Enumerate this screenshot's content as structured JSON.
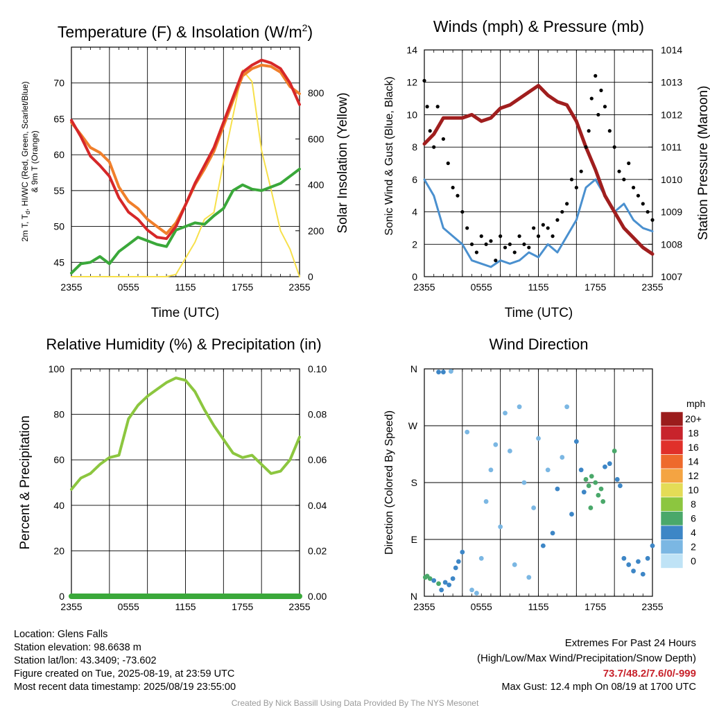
{
  "chart_data": [
    {
      "type": "line",
      "title": "Temperature (F) & Insolation (W/m²)",
      "title_main": "Temperature (F) & Insolation (W/m",
      "title_sup": "2",
      "title_end": ")",
      "xlabel": "Time (UTC)",
      "ylabel_left_1": "2m T, T",
      "ylabel_left_sub": "d",
      "ylabel_left_2": ", HI/WC (Red, Green, Scarlet/Blue)",
      "ylabel_left_3": "& 9m T (Orange)",
      "ylabel_right": "Solar Insolation (Yellow)",
      "xticks": [
        "2355",
        "0555",
        "1155",
        "1755",
        "2355"
      ],
      "ylim_left": [
        43,
        75
      ],
      "yticks_left": [
        45,
        50,
        55,
        60,
        65,
        70
      ],
      "ylim_right": [
        0,
        1000
      ],
      "yticks_right": [
        0,
        200,
        400,
        600,
        800
      ],
      "x": [
        0,
        1,
        2,
        3,
        4,
        5,
        6,
        7,
        8,
        9,
        10,
        11,
        12,
        13,
        14,
        15,
        16,
        17,
        18,
        19,
        20,
        21,
        22,
        23,
        24
      ],
      "series": [
        {
          "name": "2m T",
          "color": "#d62728",
          "axis": "left",
          "values": [
            64.8,
            62.5,
            59.8,
            58.5,
            57.0,
            54.0,
            52.0,
            51.0,
            49.5,
            48.5,
            48.3,
            50.0,
            53.0,
            56.0,
            58.5,
            61.0,
            64.5,
            68.0,
            71.5,
            72.5,
            73.2,
            72.8,
            72.0,
            70.0,
            67.0
          ]
        },
        {
          "name": "9m T",
          "color": "#f07f2b",
          "axis": "left",
          "values": [
            64.5,
            62.8,
            61.0,
            60.3,
            59.0,
            55.5,
            53.5,
            52.5,
            51.0,
            50.0,
            49.0,
            50.5,
            53.0,
            55.8,
            58.0,
            60.5,
            64.0,
            67.5,
            71.0,
            72.0,
            72.5,
            72.3,
            71.5,
            69.5,
            68.5
          ]
        },
        {
          "name": "Td",
          "color": "#3aa83a",
          "axis": "left",
          "values": [
            43.5,
            44.8,
            45.0,
            45.8,
            44.8,
            46.5,
            47.5,
            48.5,
            48.0,
            47.5,
            47.2,
            49.5,
            50.0,
            50.5,
            50.3,
            51.5,
            52.5,
            55.0,
            55.8,
            55.2,
            55.0,
            55.5,
            56.0,
            57.0,
            58.0
          ]
        },
        {
          "name": "Solar",
          "color": "#f7e04a",
          "axis": "right",
          "values": [
            0,
            0,
            0,
            0,
            0,
            0,
            0,
            0,
            0,
            0,
            0,
            10,
            80,
            150,
            250,
            280,
            500,
            700,
            900,
            850,
            550,
            380,
            200,
            120,
            0
          ]
        }
      ]
    },
    {
      "type": "line",
      "title": "Winds (mph) & Pressure (mb)",
      "xlabel": "Time (UTC)",
      "ylabel_left": "Sonic Wind & Gust (Blue, Black)",
      "ylabel_right": "Station Pressure (Maroon)",
      "xticks": [
        "2355",
        "0555",
        "1155",
        "1755",
        "2355"
      ],
      "ylim_left": [
        0,
        14
      ],
      "yticks_left": [
        0,
        2,
        4,
        6,
        8,
        10,
        12,
        14
      ],
      "ylim_right": [
        1007,
        1014
      ],
      "yticks_right": [
        1007,
        1008,
        1009,
        1010,
        1011,
        1012,
        1013,
        1014
      ],
      "x": [
        0,
        1,
        2,
        3,
        4,
        5,
        6,
        7,
        8,
        9,
        10,
        11,
        12,
        13,
        14,
        15,
        16,
        17,
        18,
        19,
        20,
        21,
        22,
        23,
        24
      ],
      "series": [
        {
          "name": "Sonic Wind",
          "color": "#4a90cf",
          "axis": "left",
          "values": [
            6.0,
            5.0,
            3.0,
            2.5,
            2.0,
            1.0,
            0.8,
            0.6,
            1.0,
            0.8,
            1.0,
            1.5,
            1.2,
            2.0,
            1.5,
            2.5,
            3.5,
            5.5,
            6.0,
            5.0,
            4.0,
            4.5,
            3.5,
            3.0,
            2.8
          ]
        },
        {
          "name": "Pressure",
          "color": "#a01e1e",
          "axis": "right",
          "values": [
            1011.1,
            1011.4,
            1011.9,
            1011.9,
            1011.9,
            1012.0,
            1011.8,
            1011.9,
            1012.2,
            1012.3,
            1012.5,
            1012.7,
            1012.9,
            1012.6,
            1012.4,
            1012.3,
            1011.8,
            1011.0,
            1010.3,
            1009.5,
            1009.0,
            1008.5,
            1008.2,
            1007.9,
            1007.7
          ]
        },
        {
          "name": "Gust",
          "color": "#000000",
          "axis": "left",
          "style": "dots",
          "x": [
            0,
            0.3,
            0.6,
            1,
            1.4,
            2,
            2.5,
            3,
            3.5,
            4,
            4.5,
            5,
            5.5,
            6,
            6.5,
            7,
            7.5,
            8,
            8.5,
            9,
            9.5,
            10,
            10.5,
            11,
            11.5,
            12,
            12.5,
            13,
            13.5,
            14,
            14.5,
            15,
            15.5,
            16,
            16.5,
            17,
            17.3,
            17.6,
            18,
            18.3,
            18.6,
            19,
            19.5,
            20,
            20.5,
            21,
            21.5,
            22,
            22.5,
            23,
            23.5,
            24
          ],
          "values": [
            12.1,
            10.5,
            9.0,
            8.0,
            10.5,
            8.5,
            7.0,
            5.5,
            5.0,
            4.0,
            3.0,
            2.0,
            1.5,
            2.5,
            2.0,
            2.2,
            1.0,
            2.5,
            1.8,
            2.0,
            1.5,
            2.5,
            2.0,
            1.8,
            3.0,
            2.5,
            3.2,
            3.0,
            2.5,
            3.5,
            4.0,
            4.5,
            6.0,
            5.5,
            6.5,
            8.0,
            9.0,
            11.0,
            12.4,
            10.0,
            11.5,
            10.5,
            9.0,
            8.0,
            6.5,
            6.0,
            7.0,
            5.5,
            5.0,
            4.5,
            4.0,
            3.5
          ]
        }
      ]
    },
    {
      "type": "line",
      "title": "Relative Humidity (%) & Precipitation (in)",
      "ylabel_left": "Percent & Precipitation",
      "xticks": [
        "2355",
        "0555",
        "1155",
        "1755",
        "2355"
      ],
      "ylim_left": [
        0,
        100
      ],
      "yticks_left": [
        0,
        20,
        40,
        60,
        80,
        100
      ],
      "ylim_right": [
        0,
        0.1
      ],
      "yticks_right": [
        "0.00",
        "0.02",
        "0.04",
        "0.06",
        "0.08",
        "0.10"
      ],
      "x": [
        0,
        1,
        2,
        3,
        4,
        5,
        6,
        7,
        8,
        9,
        10,
        11,
        12,
        13,
        14,
        15,
        16,
        17,
        18,
        19,
        20,
        21,
        22,
        23,
        24
      ],
      "series": [
        {
          "name": "RH",
          "color": "#8cc63f",
          "axis": "left",
          "values": [
            47,
            52,
            54,
            58,
            61,
            62,
            78,
            84,
            88,
            91,
            94,
            96,
            95,
            90,
            82,
            75,
            69,
            63,
            61,
            62,
            58,
            54,
            55,
            60,
            70
          ]
        },
        {
          "name": "Precipitation",
          "color": "#3aa83a",
          "axis": "right",
          "values": [
            0,
            0,
            0,
            0,
            0,
            0,
            0,
            0,
            0,
            0,
            0,
            0,
            0,
            0,
            0,
            0,
            0,
            0,
            0,
            0,
            0,
            0,
            0,
            0,
            0
          ]
        }
      ]
    },
    {
      "type": "scatter",
      "title": "Wind Direction",
      "ylabel_left": "Direction (Colored By Speed)",
      "xticks": [
        "2355",
        "0555",
        "1155",
        "1755",
        "2355"
      ],
      "ylim_left": [
        0,
        360
      ],
      "yticks_left": [
        "N",
        "E",
        "S",
        "W",
        "N"
      ],
      "legend_title": "mph",
      "legend_placement": "right",
      "legend_labels": [
        "20+",
        "18",
        "16",
        "14",
        "12",
        "10",
        "8",
        "6",
        "4",
        "2",
        "0"
      ],
      "legend_colors": [
        "#9b1c1c",
        "#c8232c",
        "#e0302a",
        "#ee6a2c",
        "#f4a442",
        "#e4dc56",
        "#8cc63f",
        "#4aa86a",
        "#3d86c6",
        "#7bb7e3",
        "#bfe3f6"
      ],
      "points": [
        {
          "x": 0.1,
          "dir": 30,
          "spd": 6
        },
        {
          "x": 0.3,
          "dir": 32,
          "spd": 6
        },
        {
          "x": 0.6,
          "dir": 28,
          "spd": 5
        },
        {
          "x": 1.0,
          "dir": 25,
          "spd": 4
        },
        {
          "x": 1.5,
          "dir": 20,
          "spd": 5
        },
        {
          "x": 1.8,
          "dir": 10,
          "spd": 4
        },
        {
          "x": 2.2,
          "dir": 22,
          "spd": 4
        },
        {
          "x": 2.6,
          "dir": 18,
          "spd": 3
        },
        {
          "x": 3.0,
          "dir": 28,
          "spd": 4
        },
        {
          "x": 3.3,
          "dir": 45,
          "spd": 3
        },
        {
          "x": 3.6,
          "dir": 55,
          "spd": 4
        },
        {
          "x": 4.0,
          "dir": 70,
          "spd": 3
        },
        {
          "x": 1.5,
          "dir": 355,
          "spd": 3
        },
        {
          "x": 2.0,
          "dir": 355,
          "spd": 3
        },
        {
          "x": 2.8,
          "dir": 356,
          "spd": 1
        },
        {
          "x": 4.5,
          "dir": 260,
          "spd": 2
        },
        {
          "x": 5.0,
          "dir": 10,
          "spd": 2
        },
        {
          "x": 5.5,
          "dir": 5,
          "spd": 1
        },
        {
          "x": 6.0,
          "dir": 60,
          "spd": 2
        },
        {
          "x": 6.5,
          "dir": 150,
          "spd": 1
        },
        {
          "x": 7.0,
          "dir": 200,
          "spd": 2
        },
        {
          "x": 7.5,
          "dir": 240,
          "spd": 1
        },
        {
          "x": 8.0,
          "dir": 110,
          "spd": 2
        },
        {
          "x": 8.5,
          "dir": 290,
          "spd": 1
        },
        {
          "x": 9.0,
          "dir": 230,
          "spd": 2
        },
        {
          "x": 9.5,
          "dir": 50,
          "spd": 1
        },
        {
          "x": 10.0,
          "dir": 300,
          "spd": 1
        },
        {
          "x": 10.5,
          "dir": 180,
          "spd": 2
        },
        {
          "x": 11.0,
          "dir": 30,
          "spd": 2
        },
        {
          "x": 11.5,
          "dir": 140,
          "spd": 1
        },
        {
          "x": 12.0,
          "dir": 250,
          "spd": 2
        },
        {
          "x": 12.5,
          "dir": 80,
          "spd": 3
        },
        {
          "x": 13.0,
          "dir": 200,
          "spd": 2
        },
        {
          "x": 13.5,
          "dir": 100,
          "spd": 3
        },
        {
          "x": 14.0,
          "dir": 170,
          "spd": 3
        },
        {
          "x": 14.5,
          "dir": 220,
          "spd": 2
        },
        {
          "x": 15.0,
          "dir": 300,
          "spd": 2
        },
        {
          "x": 15.5,
          "dir": 130,
          "spd": 3
        },
        {
          "x": 16.0,
          "dir": 245,
          "spd": 4
        },
        {
          "x": 16.5,
          "dir": 200,
          "spd": 4
        },
        {
          "x": 17.0,
          "dir": 185,
          "spd": 5
        },
        {
          "x": 17.3,
          "dir": 175,
          "spd": 6
        },
        {
          "x": 17.6,
          "dir": 190,
          "spd": 6
        },
        {
          "x": 18.0,
          "dir": 180,
          "spd": 5
        },
        {
          "x": 18.3,
          "dir": 160,
          "spd": 6
        },
        {
          "x": 18.6,
          "dir": 170,
          "spd": 5
        },
        {
          "x": 19.0,
          "dir": 205,
          "spd": 4
        },
        {
          "x": 19.5,
          "dir": 210,
          "spd": 4
        },
        {
          "x": 20.0,
          "dir": 230,
          "spd": 5
        },
        {
          "x": 20.3,
          "dir": 185,
          "spd": 4
        },
        {
          "x": 20.6,
          "dir": 175,
          "spd": 4
        },
        {
          "x": 17.5,
          "dir": 140,
          "spd": 6
        },
        {
          "x": 16.8,
          "dir": 165,
          "spd": 4
        },
        {
          "x": 18.8,
          "dir": 150,
          "spd": 6
        },
        {
          "x": 21.0,
          "dir": 60,
          "spd": 4
        },
        {
          "x": 21.5,
          "dir": 50,
          "spd": 4
        },
        {
          "x": 22.0,
          "dir": 40,
          "spd": 4
        },
        {
          "x": 22.5,
          "dir": 55,
          "spd": 4
        },
        {
          "x": 23.0,
          "dir": 35,
          "spd": 4
        },
        {
          "x": 23.5,
          "dir": 60,
          "spd": 3
        },
        {
          "x": 24.0,
          "dir": 80,
          "spd": 3
        }
      ]
    }
  ],
  "info": {
    "location": "Location: Glens Falls",
    "elevation": "Station elevation: 98.6638 m",
    "latlon": "Station lat/lon: 43.3409; -73.602",
    "created": "Figure created on Tue, 2025-08-19, at 23:59 UTC",
    "recent": "Most recent data timestamp: 2025/08/19 23:55:00"
  },
  "extremes": {
    "title": "Extremes For Past 24 Hours",
    "subtitle": "(High/Low/Max Wind/Precipitation/Snow Depth)",
    "values": "73.7/48.2/7.6/0/-999",
    "gust": "Max Gust: 12.4 mph On 08/19 at 1700 UTC"
  },
  "credit": "Created By Nick Bassill Using Data Provided By The NYS Mesonet"
}
